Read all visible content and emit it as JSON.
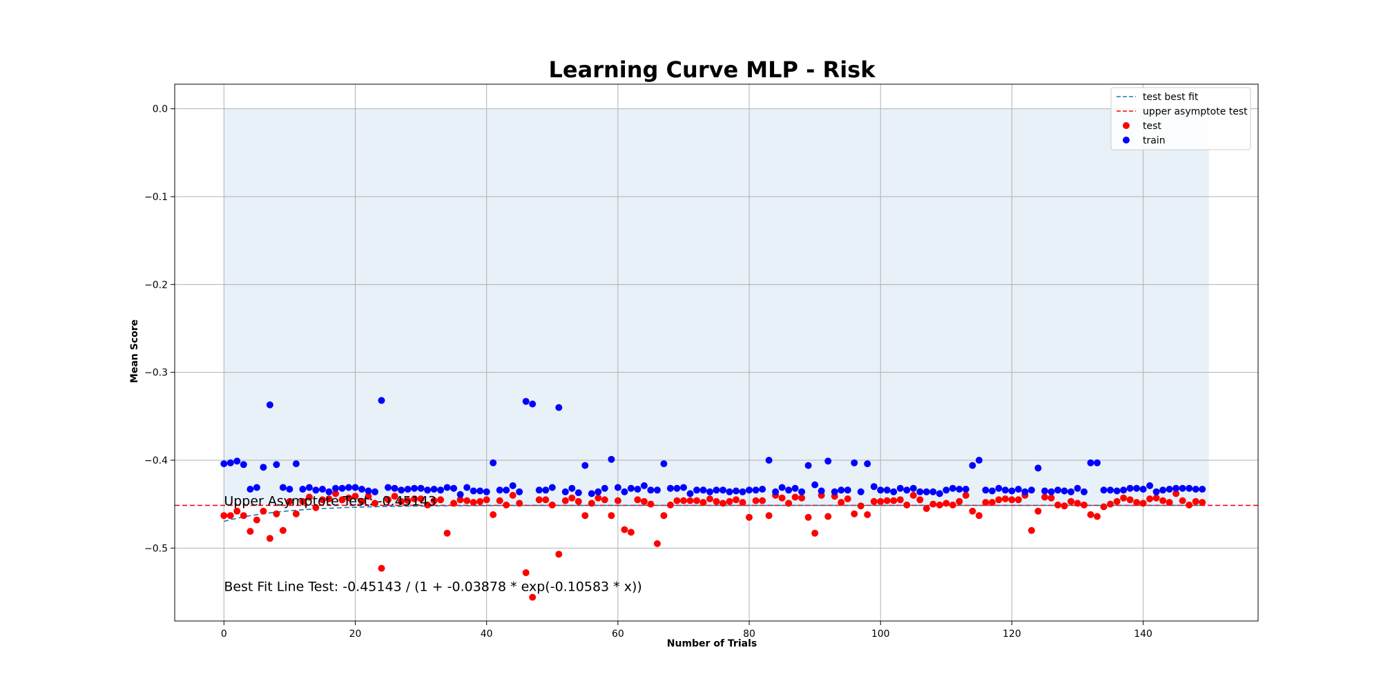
{
  "chart_data": {
    "type": "scatter",
    "title": "Learning Curve MLP - Risk",
    "xlabel": "Number of Trials",
    "ylabel": "Mean Score",
    "xlim": [
      -7.5,
      157.5
    ],
    "ylim": [
      -0.583,
      0.028
    ],
    "x_ticks": [
      0,
      20,
      40,
      60,
      80,
      100,
      120,
      140
    ],
    "y_ticks": [
      0.0,
      -0.1,
      -0.2,
      -0.3,
      -0.4,
      -0.5
    ],
    "x_tick_labels": [
      "0",
      "20",
      "40",
      "60",
      "80",
      "100",
      "120",
      "140"
    ],
    "y_tick_labels": [
      "0.0",
      "−0.1",
      "−0.2",
      "−0.3",
      "−0.4",
      "−0.5"
    ],
    "grid": true,
    "legend_position": "top-right",
    "shaded_band": {
      "x": [
        0,
        150
      ],
      "y": [
        -0.4514,
        0.0
      ]
    },
    "asymptote": {
      "y": -0.45143,
      "label": "upper asymptote test",
      "color": "#ff0000"
    },
    "fit": {
      "label": "test best fit",
      "color": "#1f77b4",
      "x_range": [
        0,
        149
      ],
      "a": -0.45143,
      "b": -0.03878,
      "c": -0.10583
    },
    "annotations": [
      {
        "text": "Upper Asymptote Test: -0.45143",
        "x": 0,
        "y": -0.4514
      },
      {
        "text": "Best Fit Line Test: -0.45143 / (1 + -0.03878 * exp(-0.10583 * x))",
        "x": 0,
        "y": -0.549
      }
    ],
    "series": [
      {
        "name": "test",
        "color": "#ff0000",
        "x": [
          0,
          1,
          2,
          3,
          4,
          5,
          6,
          7,
          8,
          9,
          10,
          11,
          12,
          13,
          14,
          15,
          16,
          17,
          18,
          19,
          20,
          21,
          22,
          23,
          24,
          25,
          26,
          27,
          28,
          29,
          30,
          31,
          32,
          33,
          34,
          35,
          36,
          37,
          38,
          39,
          40,
          41,
          42,
          43,
          44,
          45,
          46,
          47,
          48,
          49,
          50,
          51,
          52,
          53,
          54,
          55,
          56,
          57,
          58,
          59,
          60,
          61,
          62,
          63,
          64,
          65,
          66,
          67,
          68,
          69,
          70,
          71,
          72,
          73,
          74,
          75,
          76,
          77,
          78,
          79,
          80,
          81,
          82,
          83,
          84,
          85,
          86,
          87,
          88,
          89,
          90,
          91,
          92,
          93,
          94,
          95,
          96,
          97,
          98,
          99,
          100,
          101,
          102,
          103,
          104,
          105,
          106,
          107,
          108,
          109,
          110,
          111,
          112,
          113,
          114,
          115,
          116,
          117,
          118,
          119,
          120,
          121,
          122,
          123,
          124,
          125,
          126,
          127,
          128,
          129,
          130,
          131,
          132,
          133,
          134,
          135,
          136,
          137,
          138,
          139,
          140,
          141,
          142,
          143,
          144,
          145,
          146,
          147,
          148,
          149
        ],
        "y": [
          -0.463,
          -0.463,
          -0.458,
          -0.463,
          -0.481,
          -0.468,
          -0.458,
          -0.489,
          -0.461,
          -0.48,
          -0.447,
          -0.461,
          -0.447,
          -0.442,
          -0.454,
          -0.445,
          -0.444,
          -0.438,
          -0.445,
          -0.443,
          -0.441,
          -0.447,
          -0.441,
          -0.449,
          -0.523,
          -0.445,
          -0.441,
          -0.447,
          -0.446,
          -0.444,
          -0.444,
          -0.451,
          -0.446,
          -0.445,
          -0.483,
          -0.449,
          -0.445,
          -0.446,
          -0.448,
          -0.447,
          -0.445,
          -0.462,
          -0.446,
          -0.451,
          -0.44,
          -0.449,
          -0.528,
          -0.556,
          -0.445,
          -0.445,
          -0.451,
          -0.507,
          -0.446,
          -0.443,
          -0.447,
          -0.463,
          -0.449,
          -0.443,
          -0.445,
          -0.463,
          -0.446,
          -0.479,
          -0.482,
          -0.445,
          -0.447,
          -0.45,
          -0.495,
          -0.463,
          -0.451,
          -0.446,
          -0.446,
          -0.446,
          -0.446,
          -0.448,
          -0.444,
          -0.447,
          -0.449,
          -0.447,
          -0.445,
          -0.448,
          -0.465,
          -0.446,
          -0.446,
          -0.463,
          -0.44,
          -0.443,
          -0.449,
          -0.442,
          -0.443,
          -0.465,
          -0.483,
          -0.44,
          -0.464,
          -0.441,
          -0.448,
          -0.444,
          -0.461,
          -0.452,
          -0.462,
          -0.447,
          -0.447,
          -0.446,
          -0.446,
          -0.445,
          -0.451,
          -0.44,
          -0.445,
          -0.455,
          -0.45,
          -0.451,
          -0.449,
          -0.451,
          -0.447,
          -0.44,
          -0.458,
          -0.463,
          -0.448,
          -0.448,
          -0.445,
          -0.444,
          -0.445,
          -0.445,
          -0.44,
          -0.48,
          -0.458,
          -0.442,
          -0.443,
          -0.451,
          -0.452,
          -0.447,
          -0.449,
          -0.451,
          -0.462,
          -0.464,
          -0.453,
          -0.45,
          -0.447,
          -0.443,
          -0.445,
          -0.448,
          -0.449,
          -0.444,
          -0.443,
          -0.446,
          -0.448,
          -0.438,
          -0.446,
          -0.451,
          -0.447,
          -0.448
        ]
      },
      {
        "name": "train",
        "color": "#0000ff",
        "x": [
          0,
          1,
          2,
          3,
          4,
          5,
          6,
          7,
          8,
          9,
          10,
          11,
          12,
          13,
          14,
          15,
          16,
          17,
          18,
          19,
          20,
          21,
          22,
          23,
          24,
          25,
          26,
          27,
          28,
          29,
          30,
          31,
          32,
          33,
          34,
          35,
          36,
          37,
          38,
          39,
          40,
          41,
          42,
          43,
          44,
          45,
          46,
          47,
          48,
          49,
          50,
          51,
          52,
          53,
          54,
          55,
          56,
          57,
          58,
          59,
          60,
          61,
          62,
          63,
          64,
          65,
          66,
          67,
          68,
          69,
          70,
          71,
          72,
          73,
          74,
          75,
          76,
          77,
          78,
          79,
          80,
          81,
          82,
          83,
          84,
          85,
          86,
          87,
          88,
          89,
          90,
          91,
          92,
          93,
          94,
          95,
          96,
          97,
          98,
          99,
          100,
          101,
          102,
          103,
          104,
          105,
          106,
          107,
          108,
          109,
          110,
          111,
          112,
          113,
          114,
          115,
          116,
          117,
          118,
          119,
          120,
          121,
          122,
          123,
          124,
          125,
          126,
          127,
          128,
          129,
          130,
          131,
          132,
          133,
          134,
          135,
          136,
          137,
          138,
          139,
          140,
          141,
          142,
          143,
          144,
          145,
          146,
          147,
          148,
          149
        ],
        "y": [
          -0.404,
          -0.403,
          -0.401,
          -0.405,
          -0.433,
          -0.431,
          -0.408,
          -0.337,
          -0.405,
          -0.431,
          -0.433,
          -0.404,
          -0.433,
          -0.431,
          -0.434,
          -0.433,
          -0.436,
          -0.432,
          -0.432,
          -0.431,
          -0.431,
          -0.433,
          -0.435,
          -0.436,
          -0.332,
          -0.431,
          -0.432,
          -0.434,
          -0.433,
          -0.432,
          -0.432,
          -0.434,
          -0.433,
          -0.434,
          -0.431,
          -0.432,
          -0.439,
          -0.431,
          -0.435,
          -0.435,
          -0.436,
          -0.403,
          -0.434,
          -0.434,
          -0.429,
          -0.436,
          -0.333,
          -0.336,
          -0.434,
          -0.434,
          -0.431,
          -0.34,
          -0.436,
          -0.432,
          -0.437,
          -0.406,
          -0.438,
          -0.436,
          -0.432,
          -0.399,
          -0.431,
          -0.436,
          -0.432,
          -0.433,
          -0.429,
          -0.434,
          -0.434,
          -0.404,
          -0.432,
          -0.432,
          -0.431,
          -0.438,
          -0.434,
          -0.434,
          -0.436,
          -0.434,
          -0.434,
          -0.436,
          -0.435,
          -0.436,
          -0.434,
          -0.434,
          -0.433,
          -0.4,
          -0.436,
          -0.431,
          -0.434,
          -0.432,
          -0.436,
          -0.406,
          -0.428,
          -0.435,
          -0.401,
          -0.436,
          -0.434,
          -0.434,
          -0.403,
          -0.436,
          -0.404,
          -0.43,
          -0.434,
          -0.434,
          -0.436,
          -0.432,
          -0.434,
          -0.432,
          -0.436,
          -0.436,
          -0.436,
          -0.438,
          -0.434,
          -0.432,
          -0.433,
          -0.433,
          -0.406,
          -0.4,
          -0.434,
          -0.435,
          -0.432,
          -0.434,
          -0.435,
          -0.433,
          -0.436,
          -0.434,
          -0.409,
          -0.435,
          -0.436,
          -0.434,
          -0.435,
          -0.436,
          -0.432,
          -0.436,
          -0.403,
          -0.403,
          -0.434,
          -0.434,
          -0.435,
          -0.434,
          -0.432,
          -0.432,
          -0.433,
          -0.429,
          -0.436,
          -0.434,
          -0.433,
          -0.432,
          -0.432,
          -0.432,
          -0.433,
          -0.433
        ]
      }
    ]
  }
}
